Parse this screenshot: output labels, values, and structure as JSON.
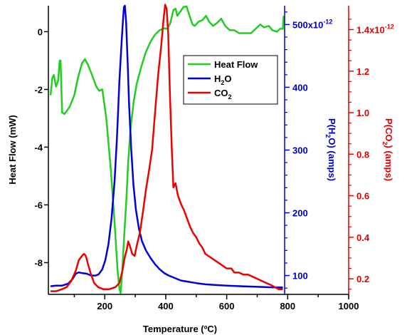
{
  "chart_data": {
    "type": "line",
    "title": "",
    "xlabel": "Temperature (ºC)",
    "xlim": [
      15,
      1000
    ],
    "xticks": [
      200,
      400,
      600,
      800,
      1000
    ],
    "axes": {
      "left": {
        "label": "Heat Flow (mW)",
        "color": "#000000",
        "ylim": [
          -9.1,
          0.9
        ],
        "ticks": [
          {
            "v": 0,
            "label": "0"
          },
          {
            "v": -2,
            "label": "-2"
          },
          {
            "v": -4,
            "label": "-4"
          },
          {
            "v": -6,
            "label": "-6"
          },
          {
            "v": -8,
            "label": "-8"
          }
        ]
      },
      "h2o": {
        "label_prefix": "P(H",
        "label_sub": "2",
        "label_suffix": "O) (amps)",
        "color": "#0000cc",
        "ylim": [
          70,
          530
        ],
        "ticks": [
          {
            "v": 500,
            "label": "500x10",
            "sup": "-12"
          },
          {
            "v": 400,
            "label": "400"
          },
          {
            "v": 300,
            "label": "300"
          },
          {
            "v": 200,
            "label": "200"
          },
          {
            "v": 100,
            "label": "100"
          }
        ]
      },
      "co2": {
        "label_prefix": "P(CO",
        "label_sub": "2",
        "label_suffix": ") (amps)",
        "color": "#e00000",
        "ylim": [
          0.125,
          1.515
        ],
        "ticks": [
          {
            "v": 1.4,
            "label": "1.4x10",
            "sup": "-12"
          },
          {
            "v": 1.2,
            "label": "1.2"
          },
          {
            "v": 1.0,
            "label": "1.0"
          },
          {
            "v": 0.8,
            "label": "0.8"
          },
          {
            "v": 0.6,
            "label": "0.6"
          },
          {
            "v": 0.4,
            "label": "0.4"
          },
          {
            "v": 0.2,
            "label": "0.2"
          }
        ]
      }
    },
    "legend": {
      "position": "top-right",
      "entries": [
        {
          "key": "heatflow",
          "text": "Heat Flow",
          "sub": "",
          "tail": ""
        },
        {
          "key": "h2o",
          "text": "H",
          "sub": "2",
          "tail": "O"
        },
        {
          "key": "co2",
          "text": "CO",
          "sub": "2",
          "tail": ""
        }
      ]
    },
    "series": [
      {
        "key": "heatflow",
        "axis": "left",
        "color": "#22cc22",
        "points": [
          [
            22,
            -2.2
          ],
          [
            28,
            -1.6
          ],
          [
            33,
            -1.5
          ],
          [
            40,
            -1.9
          ],
          [
            47,
            -1.7
          ],
          [
            52,
            -1.0
          ],
          [
            55,
            -1.0
          ],
          [
            60,
            -2.8
          ],
          [
            68,
            -2.85
          ],
          [
            85,
            -2.6
          ],
          [
            100,
            -2.2
          ],
          [
            112,
            -1.6
          ],
          [
            125,
            -1.1
          ],
          [
            135,
            -0.95
          ],
          [
            145,
            -1.15
          ],
          [
            158,
            -1.5
          ],
          [
            172,
            -1.9
          ],
          [
            182,
            -2.05
          ],
          [
            192,
            -2.0
          ],
          [
            205,
            -3.0
          ],
          [
            220,
            -4.8
          ],
          [
            232,
            -6.6
          ],
          [
            242,
            -8.3
          ],
          [
            248,
            -8.9
          ],
          [
            252,
            -9.05
          ],
          [
            256,
            -8.5
          ],
          [
            264,
            -7.0
          ],
          [
            270,
            -6.0
          ],
          [
            277,
            -4.5
          ],
          [
            285,
            -3.3
          ],
          [
            295,
            -2.4
          ],
          [
            305,
            -1.8
          ],
          [
            320,
            -1.2
          ],
          [
            335,
            -0.7
          ],
          [
            350,
            -0.35
          ],
          [
            365,
            -0.1
          ],
          [
            380,
            0.05
          ],
          [
            395,
            0.12
          ],
          [
            405,
            0.1
          ],
          [
            415,
            0.3
          ],
          [
            425,
            0.75
          ],
          [
            432,
            0.8
          ],
          [
            438,
            0.55
          ],
          [
            448,
            0.7
          ],
          [
            458,
            0.85
          ],
          [
            468,
            0.88
          ],
          [
            478,
            0.55
          ],
          [
            488,
            0.25
          ],
          [
            495,
            0.2
          ],
          [
            508,
            0.35
          ],
          [
            520,
            0.4
          ],
          [
            532,
            0.55
          ],
          [
            542,
            0.35
          ],
          [
            555,
            0.2
          ],
          [
            568,
            0.3
          ],
          [
            582,
            0.45
          ],
          [
            595,
            0.2
          ],
          [
            610,
            0.05
          ],
          [
            625,
            0.05
          ],
          [
            640,
            -0.05
          ],
          [
            660,
            -0.05
          ],
          [
            680,
            -0.05
          ],
          [
            695,
            0.1
          ],
          [
            710,
            0.25
          ],
          [
            722,
            0.15
          ],
          [
            738,
            0.2
          ],
          [
            750,
            0.05
          ],
          [
            765,
            0.0
          ],
          [
            775,
            0.1
          ],
          [
            784,
            0.1
          ],
          [
            787,
            0.55
          ]
        ]
      },
      {
        "key": "h2o",
        "axis": "h2o",
        "color": "#0000dd",
        "points": [
          [
            22,
            83
          ],
          [
            40,
            84
          ],
          [
            60,
            84
          ],
          [
            80,
            87
          ],
          [
            95,
            95
          ],
          [
            105,
            103
          ],
          [
            115,
            105
          ],
          [
            125,
            104
          ],
          [
            140,
            103
          ],
          [
            155,
            100
          ],
          [
            170,
            100
          ],
          [
            180,
            102
          ],
          [
            192,
            110
          ],
          [
            202,
            125
          ],
          [
            212,
            150
          ],
          [
            222,
            190
          ],
          [
            232,
            250
          ],
          [
            240,
            320
          ],
          [
            248,
            410
          ],
          [
            255,
            470
          ],
          [
            260,
            510
          ],
          [
            263,
            528
          ],
          [
            266,
            530
          ],
          [
            270,
            505
          ],
          [
            275,
            440
          ],
          [
            280,
            370
          ],
          [
            287,
            300
          ],
          [
            294,
            245
          ],
          [
            302,
            205
          ],
          [
            312,
            175
          ],
          [
            322,
            155
          ],
          [
            335,
            140
          ],
          [
            350,
            128
          ],
          [
            365,
            118
          ],
          [
            380,
            110
          ],
          [
            395,
            104
          ],
          [
            410,
            100
          ],
          [
            430,
            96
          ],
          [
            450,
            92
          ],
          [
            475,
            90
          ],
          [
            500,
            88
          ],
          [
            530,
            86
          ],
          [
            560,
            85
          ],
          [
            600,
            84
          ],
          [
            650,
            83
          ],
          [
            700,
            82
          ],
          [
            760,
            81
          ],
          [
            784,
            81
          ]
        ]
      },
      {
        "key": "co2",
        "axis": "co2",
        "color": "#ee0000",
        "points": [
          [
            22,
            0.14
          ],
          [
            40,
            0.14
          ],
          [
            60,
            0.15
          ],
          [
            75,
            0.16
          ],
          [
            90,
            0.19
          ],
          [
            105,
            0.24
          ],
          [
            115,
            0.29
          ],
          [
            125,
            0.31
          ],
          [
            132,
            0.32
          ],
          [
            138,
            0.31
          ],
          [
            145,
            0.27
          ],
          [
            155,
            0.22
          ],
          [
            165,
            0.18
          ],
          [
            178,
            0.16
          ],
          [
            195,
            0.15
          ],
          [
            215,
            0.15
          ],
          [
            235,
            0.16
          ],
          [
            248,
            0.18
          ],
          [
            258,
            0.24
          ],
          [
            265,
            0.3
          ],
          [
            272,
            0.34
          ],
          [
            277,
            0.38
          ],
          [
            282,
            0.36
          ],
          [
            290,
            0.32
          ],
          [
            298,
            0.31
          ],
          [
            305,
            0.36
          ],
          [
            315,
            0.42
          ],
          [
            325,
            0.52
          ],
          [
            335,
            0.63
          ],
          [
            345,
            0.72
          ],
          [
            355,
            0.82
          ],
          [
            365,
            1.0
          ],
          [
            375,
            1.18
          ],
          [
            385,
            1.32
          ],
          [
            393,
            1.45
          ],
          [
            398,
            1.52
          ],
          [
            403,
            1.5
          ],
          [
            408,
            1.38
          ],
          [
            414,
            1.08
          ],
          [
            420,
            0.82
          ],
          [
            425,
            0.64
          ],
          [
            432,
            0.66
          ],
          [
            440,
            0.6
          ],
          [
            450,
            0.56
          ],
          [
            460,
            0.53
          ],
          [
            470,
            0.49
          ],
          [
            480,
            0.45
          ],
          [
            490,
            0.42
          ],
          [
            500,
            0.4
          ],
          [
            510,
            0.37
          ],
          [
            520,
            0.35
          ],
          [
            530,
            0.32
          ],
          [
            540,
            0.31
          ],
          [
            550,
            0.3
          ],
          [
            560,
            0.29
          ],
          [
            570,
            0.28
          ],
          [
            580,
            0.27
          ],
          [
            590,
            0.26
          ],
          [
            600,
            0.25
          ],
          [
            615,
            0.25
          ],
          [
            625,
            0.23
          ],
          [
            640,
            0.23
          ],
          [
            655,
            0.22
          ],
          [
            670,
            0.22
          ],
          [
            685,
            0.21
          ],
          [
            700,
            0.2
          ],
          [
            715,
            0.19
          ],
          [
            730,
            0.18
          ],
          [
            745,
            0.17
          ],
          [
            758,
            0.16
          ],
          [
            770,
            0.15
          ],
          [
            784,
            0.15
          ]
        ]
      }
    ]
  }
}
